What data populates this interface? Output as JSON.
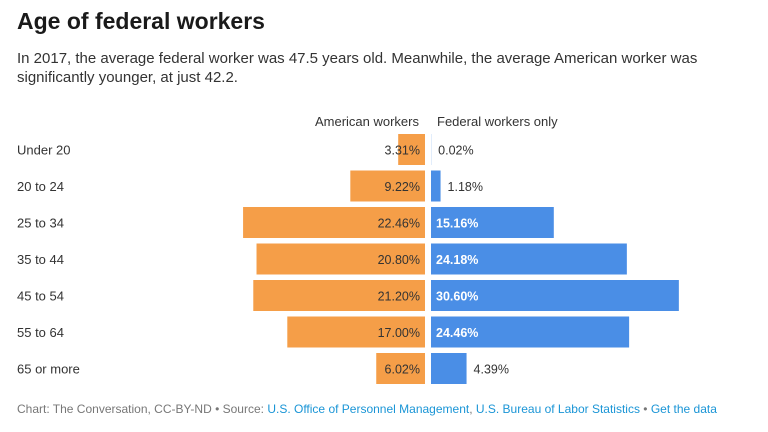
{
  "header": {
    "title": "Age of federal workers",
    "subtitle": "In 2017, the average federal worker was 47.5 years old. Meanwhile, the average American worker was significantly younger, at just 42.2."
  },
  "colors": {
    "american": "#f59e48",
    "federal": "#4a8ee6",
    "label": "#333333"
  },
  "chart_data": {
    "type": "bar",
    "title": "Age of federal workers",
    "orientation": "horizontal-diverging",
    "categories": [
      "Under 20",
      "20 to 24",
      "25 to 34",
      "35 to 44",
      "45 to 54",
      "55 to 64",
      "65 or more"
    ],
    "series": [
      {
        "name": "American workers",
        "values": [
          3.31,
          9.22,
          22.46,
          20.8,
          21.2,
          17.0,
          6.02
        ],
        "labels": [
          "3.31%",
          "9.22%",
          "22.46%",
          "20.80%",
          "21.20%",
          "17.00%",
          "6.02%"
        ]
      },
      {
        "name": "Federal workers only",
        "values": [
          0.02,
          1.18,
          15.16,
          24.18,
          30.6,
          24.46,
          4.39
        ],
        "labels": [
          "0.02%",
          "1.18%",
          "15.16%",
          "24.18%",
          "30.60%",
          "24.46%",
          "4.39%"
        ]
      }
    ],
    "xlabel": "",
    "ylabel": "",
    "unit": "%"
  },
  "footer": {
    "prefix": "Chart: The Conversation, CC-BY-ND • Source: ",
    "source1": "U.S. Office of Personnel Management",
    "sep": ", ",
    "source2": "U.S. Bureau of Labor Statistics",
    "dot": " • ",
    "get_data": "Get the data"
  }
}
